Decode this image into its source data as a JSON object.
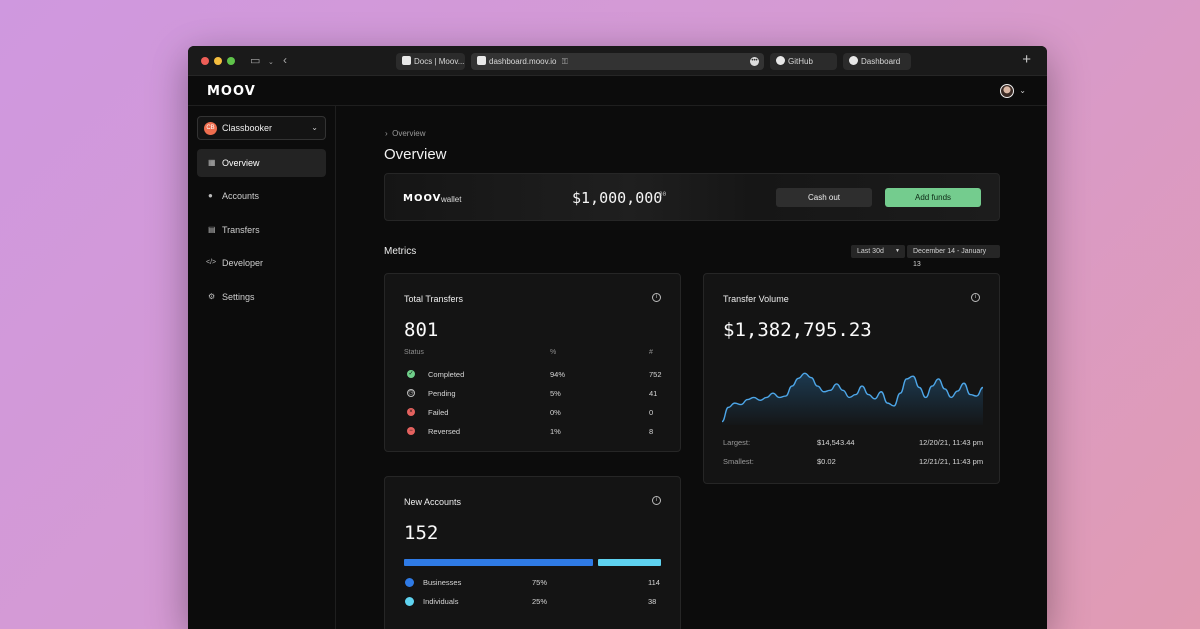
{
  "browser": {
    "tabs": [
      {
        "label": "Docs | Moov..."
      },
      {
        "label": "dashboard.moov.io"
      },
      {
        "label": "GitHub"
      },
      {
        "label": "Dashboard"
      }
    ],
    "new_tab_icon": "plus-icon"
  },
  "app": {
    "logo": "MOOV"
  },
  "sidebar": {
    "org_name": "Classbooker",
    "org_initials": "CB",
    "items": [
      {
        "label": "Overview",
        "icon": "dashboard-icon"
      },
      {
        "label": "Accounts",
        "icon": "user-icon"
      },
      {
        "label": "Transfers",
        "icon": "document-icon"
      },
      {
        "label": "Developer",
        "icon": "code-icon"
      },
      {
        "label": "Settings",
        "icon": "gear-icon"
      }
    ]
  },
  "main": {
    "breadcrumb": "Overview",
    "title": "Overview",
    "wallet": {
      "logo": "MOOV",
      "label": "wallet",
      "amount": "$1,000,000",
      "cents": "00",
      "cash_out": "Cash out",
      "add_funds": "Add funds"
    },
    "metrics": {
      "label": "Metrics",
      "range": "Last 30d",
      "dates": "December 14 - January 13"
    },
    "total_transfers": {
      "title": "Total Transfers",
      "value": "801",
      "headers": [
        "Status",
        "%",
        "#"
      ],
      "rows": [
        {
          "status": "Completed",
          "pct": "94%",
          "count": "752",
          "color": "#6fcf8a"
        },
        {
          "status": "Pending",
          "pct": "5%",
          "count": "41",
          "color": "#bdbdbd"
        },
        {
          "status": "Failed",
          "pct": "0%",
          "count": "0",
          "color": "#e5625f"
        },
        {
          "status": "Reversed",
          "pct": "1%",
          "count": "8",
          "color": "#e5625f"
        }
      ]
    },
    "transfer_volume": {
      "title": "Transfer Volume",
      "value": "$1,382,795.23",
      "largest_label": "Largest:",
      "largest_value": "$14,543.44",
      "largest_date": "12/20/21, 11:43 pm",
      "smallest_label": "Smallest:",
      "smallest_value": "$0.02",
      "smallest_date": "12/21/21, 11:43 pm",
      "series": [
        0.02,
        0.22,
        0.28,
        0.26,
        0.33,
        0.36,
        0.32,
        0.36,
        0.42,
        0.36,
        0.38,
        0.52,
        0.63,
        0.7,
        0.64,
        0.52,
        0.44,
        0.46,
        0.55,
        0.46,
        0.36,
        0.4,
        0.52,
        0.4,
        0.34,
        0.44,
        0.28,
        0.24,
        0.42,
        0.62,
        0.66,
        0.5,
        0.36,
        0.52,
        0.62,
        0.48,
        0.36,
        0.45,
        0.56,
        0.4,
        0.38,
        0.5
      ]
    },
    "new_accounts": {
      "title": "New Accounts",
      "value": "152",
      "rows": [
        {
          "label": "Businesses",
          "pct": "75%",
          "count": "114",
          "fraction": 0.75,
          "color": "#2f7be6"
        },
        {
          "label": "Individuals",
          "pct": "25%",
          "count": "38",
          "fraction": 0.25,
          "color": "#5fd3f0"
        }
      ]
    }
  }
}
